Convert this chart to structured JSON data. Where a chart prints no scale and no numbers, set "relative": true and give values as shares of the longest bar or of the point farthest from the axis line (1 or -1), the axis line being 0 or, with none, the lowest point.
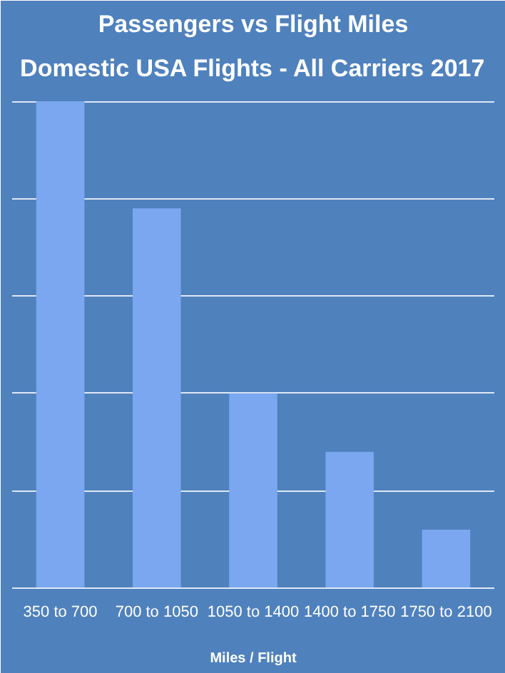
{
  "chart_data": {
    "type": "bar",
    "title": "Passengers vs Flight Miles",
    "subtitle": "Domestic USA Flights - All Carriers 2017",
    "xlabel": "Miles / Flight",
    "categories": [
      "350 to 700",
      "700 to 1050",
      "1050 to 1400",
      "1400 to 1750",
      "1750 to 2100"
    ],
    "values": [
      1,
      0.78,
      0.4,
      0.28,
      0.12
    ],
    "color": "#7aa7ef",
    "relative": true,
    "grid": "y"
  }
}
